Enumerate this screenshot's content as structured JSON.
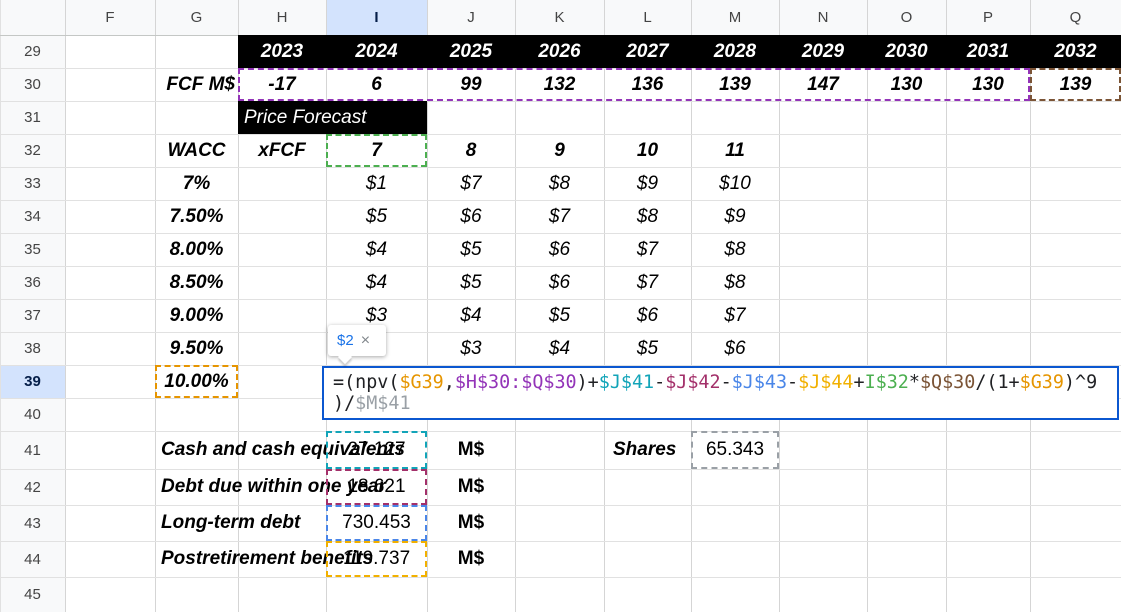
{
  "column_headers": [
    "F",
    "G",
    "H",
    "I",
    "J",
    "K",
    "L",
    "M",
    "N",
    "O",
    "P",
    "Q"
  ],
  "row_numbers": [
    29,
    30,
    31,
    32,
    33,
    34,
    35,
    36,
    37,
    38,
    39,
    40,
    41,
    42,
    43,
    44,
    45
  ],
  "years": [
    2023,
    2024,
    2025,
    2026,
    2027,
    2028,
    2029,
    2030,
    2031,
    2032
  ],
  "fcf": {
    "label": "FCF M$",
    "values": [
      -17,
      6,
      99,
      132,
      136,
      139,
      147,
      130,
      130,
      139
    ]
  },
  "price_forecast": {
    "title": "Price Forecast",
    "wacc_header": "WACC",
    "xfcf_header": "xFCF",
    "multiples": [
      7,
      8,
      9,
      10,
      11
    ],
    "rows": [
      {
        "wacc": "7%",
        "prices": [
          "$1",
          "$7",
          "$8",
          "$9",
          "$10"
        ]
      },
      {
        "wacc": "7.50%",
        "prices": [
          "$5",
          "$6",
          "$7",
          "$8",
          "$9"
        ]
      },
      {
        "wacc": "8.00%",
        "prices": [
          "$4",
          "$5",
          "$6",
          "$7",
          "$8"
        ]
      },
      {
        "wacc": "8.50%",
        "prices": [
          "$4",
          "$5",
          "$6",
          "$7",
          "$8"
        ]
      },
      {
        "wacc": "9.00%",
        "prices": [
          "$3",
          "$4",
          "$5",
          "$6",
          "$7"
        ]
      },
      {
        "wacc": "9.50%",
        "prices": [
          null,
          "$3",
          "$4",
          "$5",
          "$6"
        ]
      },
      {
        "wacc": "10.00%",
        "prices": []
      }
    ]
  },
  "formula": {
    "tooltip": "$2",
    "tooltip_close": "×",
    "lines": [
      [
        {
          "text": "=(npv(",
          "color": "#202124"
        },
        {
          "text": "$G39",
          "color": "#e69500"
        },
        {
          "text": ",",
          "color": "#202124"
        },
        {
          "text": "$H$30:$Q$30",
          "color": "#9334b8"
        },
        {
          "text": ")+",
          "color": "#202124"
        },
        {
          "text": "$J$41",
          "color": "#12a4b8"
        },
        {
          "text": "-",
          "color": "#202124"
        },
        {
          "text": "$J$42",
          "color": "#a3306a"
        },
        {
          "text": "-",
          "color": "#202124"
        },
        {
          "text": "$J$43",
          "color": "#4a86e8"
        },
        {
          "text": "-",
          "color": "#202124"
        },
        {
          "text": "$J$44",
          "color": "#f1b000"
        },
        {
          "text": "+",
          "color": "#202124"
        },
        {
          "text": "I$32",
          "color": "#4caf50"
        },
        {
          "text": "*",
          "color": "#202124"
        },
        {
          "text": "$Q$30",
          "color": "#7b5436"
        },
        {
          "text": "/(1+",
          "color": "#202124"
        },
        {
          "text": "$G39",
          "color": "#e69500"
        },
        {
          "text": ")^9",
          "color": "#202124"
        }
      ],
      [
        {
          "text": ")/",
          "color": "#202124"
        },
        {
          "text": "$M$41",
          "color": "#9aa0a6"
        }
      ]
    ]
  },
  "balance": {
    "unit": "M$",
    "items": [
      {
        "label": "Cash and cash equivalents",
        "value": 27.127
      },
      {
        "label": "Debt due within one year",
        "value": 18.621
      },
      {
        "label": "Long-term debt",
        "value": 730.453
      },
      {
        "label": "Postretirement benefits",
        "value": 119.737
      }
    ]
  },
  "shares": {
    "label": "Shares",
    "value": 65.343
  }
}
